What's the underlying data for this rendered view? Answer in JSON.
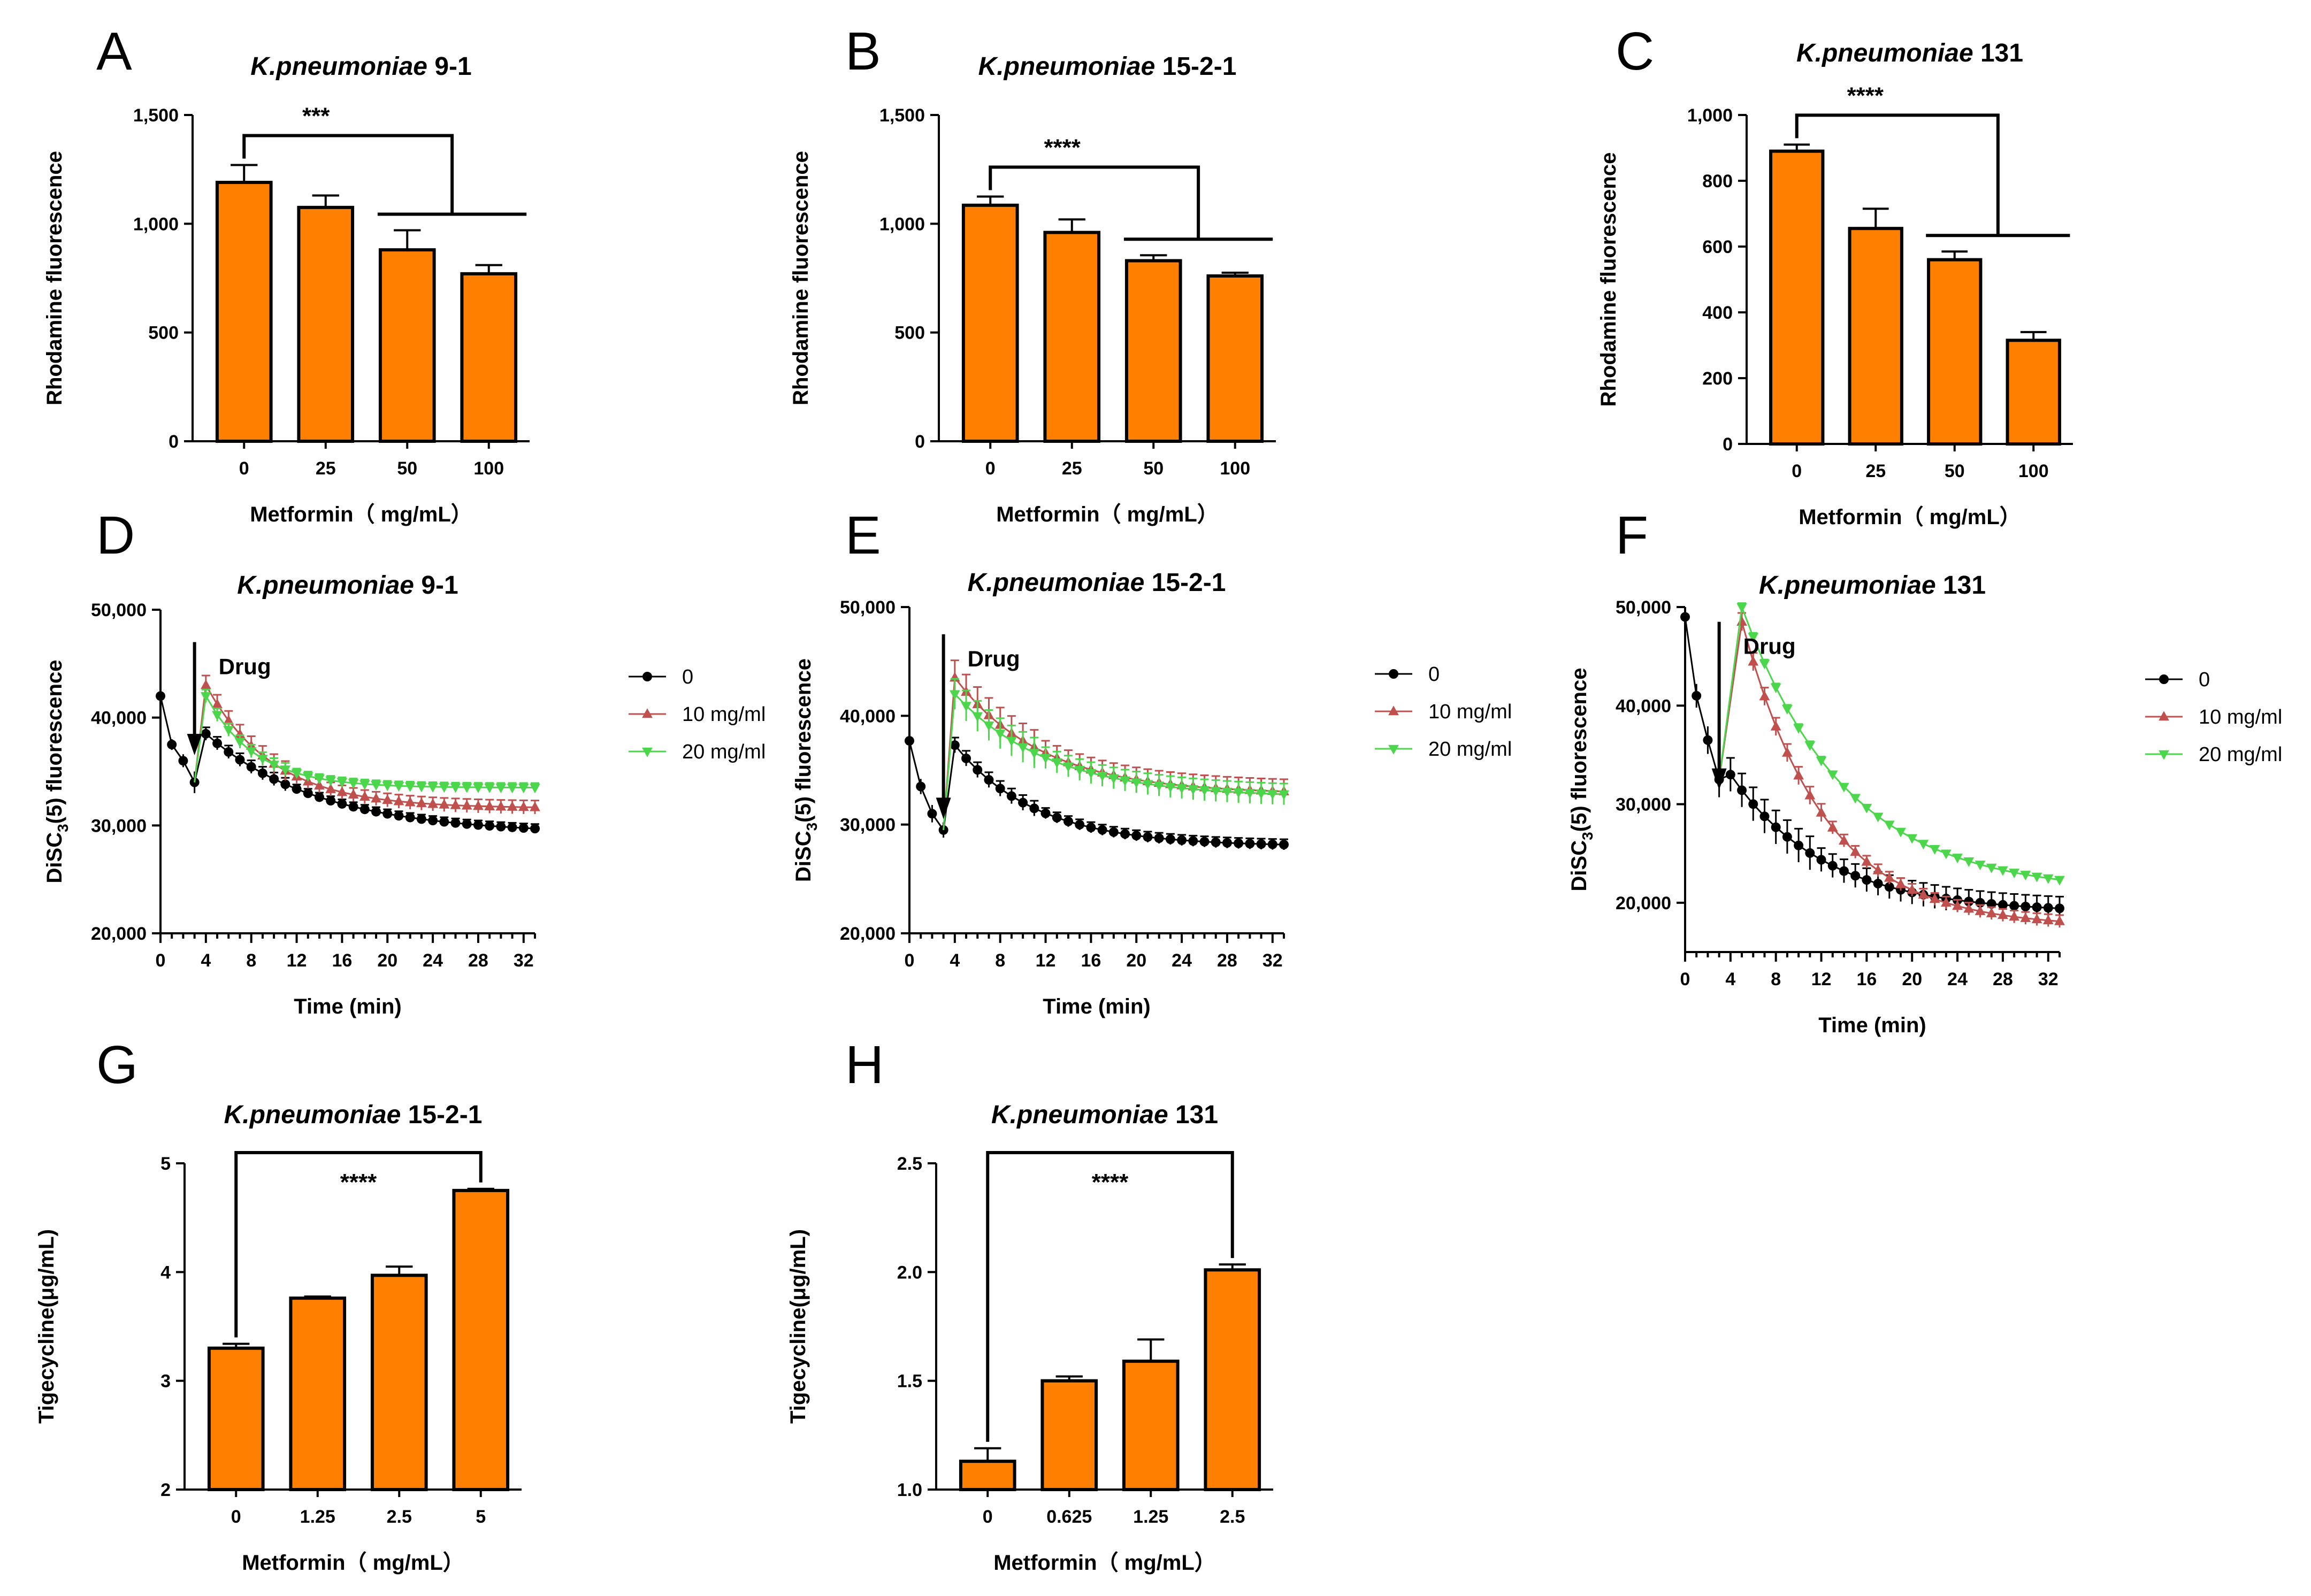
{
  "colors": {
    "bar": "#FF8000",
    "axis": "#000000",
    "series_0": "#000000",
    "series_10": "#C0504D",
    "series_20": "#4CD64C"
  },
  "chart_data": [
    {
      "id": "A",
      "type": "bar",
      "letter": "A",
      "title_italic": "K.pneumoniae",
      "title_rest": " 9-1",
      "xlabel": "Metformin（ mg/mL）",
      "ylabel": "Rhodamine fluorescence",
      "categories": [
        "0",
        "25",
        "50",
        "100"
      ],
      "values": [
        1190,
        1075,
        880,
        770
      ],
      "errors": [
        80,
        55,
        90,
        40
      ],
      "ylim": [
        0,
        1500
      ],
      "yticks": [
        0,
        500,
        1000,
        1500
      ],
      "yticklabels": [
        "0",
        "500",
        "1,000",
        "1,500"
      ],
      "sig": "***",
      "sig_type": "bracket_group"
    },
    {
      "id": "B",
      "type": "bar",
      "letter": "B",
      "title_italic": "K.pneumoniae",
      "title_rest": " 15-2-1",
      "xlabel": "Metformin（ mg/mL）",
      "ylabel": "Rhodamine fluorescence",
      "categories": [
        "0",
        "25",
        "50",
        "100"
      ],
      "values": [
        1085,
        960,
        830,
        760
      ],
      "errors": [
        40,
        60,
        25,
        15
      ],
      "ylim": [
        0,
        1500
      ],
      "yticks": [
        0,
        500,
        1000,
        1500
      ],
      "yticklabels": [
        "0",
        "500",
        "1,000",
        "1,500"
      ],
      "sig": "****",
      "sig_type": "bracket_group"
    },
    {
      "id": "C",
      "type": "bar",
      "letter": "C",
      "title_italic": "K.pneumoniae",
      "title_rest": " 131",
      "xlabel": "Metformin（ mg/mL）",
      "ylabel": "Rhodamine fluorescence",
      "categories": [
        "0",
        "25",
        "50",
        "100"
      ],
      "values": [
        890,
        655,
        560,
        315
      ],
      "errors": [
        20,
        60,
        25,
        25
      ],
      "ylim": [
        0,
        1000
      ],
      "yticks": [
        0,
        200,
        400,
        600,
        800,
        1000
      ],
      "yticklabels": [
        "0",
        "200",
        "400",
        "600",
        "800",
        "1,000"
      ],
      "sig": "****",
      "sig_type": "bracket_group"
    },
    {
      "id": "D",
      "type": "line",
      "letter": "D",
      "title_italic": "K.pneumoniae",
      "title_rest": " 9-1",
      "xlabel": "Time (min)",
      "ylabel_main": "DiSC",
      "ylabel_sub": "3",
      "ylabel_rest": "(5) fluorescence",
      "xlim": [
        0,
        33
      ],
      "xticks": [
        0,
        4,
        8,
        12,
        16,
        20,
        24,
        28,
        32
      ],
      "ylim": [
        20000,
        50000
      ],
      "yticks": [
        20000,
        30000,
        40000,
        50000
      ],
      "yticklabels": [
        "20,000",
        "30,000",
        "40,000",
        "50,000"
      ],
      "drug_label": "Drug",
      "drug_time": 3,
      "drug_arrow_top": 47000,
      "drug_arrow_bottom": 37000,
      "baseline": {
        "x": [
          0,
          1,
          2,
          3
        ],
        "y": [
          42000,
          37500,
          36000,
          34000
        ],
        "err": [
          600,
          500,
          600,
          1000
        ]
      },
      "series": [
        {
          "name": "0",
          "color": "#000000",
          "marker": "circle",
          "start": 38500,
          "end": 29200,
          "k": 0.1,
          "jump": 3000,
          "err": 600,
          "sp": 0
        },
        {
          "name": "10 mg/ml",
          "color": "#C0504D",
          "marker": "triangle-up",
          "start": 43000,
          "end": 31600,
          "k": 0.17,
          "jump": 3500,
          "err": 900,
          "sp": 0
        },
        {
          "name": "20 mg/ml",
          "color": "#4CD64C",
          "marker": "triangle-down",
          "start": 42000,
          "end": 33500,
          "k": 0.23,
          "jump": 0,
          "err": 600,
          "sp": 0
        }
      ],
      "legend": [
        "0",
        "10 mg/ml",
        "20 mg/ml"
      ]
    },
    {
      "id": "E",
      "type": "line",
      "letter": "E",
      "title_italic": "K.pneumoniae",
      "title_rest": " 15-2-1",
      "xlabel": "Time (min)",
      "ylabel_main": "DiSC",
      "ylabel_sub": "3",
      "ylabel_rest": "(5) fluorescence",
      "xlim": [
        0,
        33
      ],
      "xticks": [
        0,
        4,
        8,
        12,
        16,
        20,
        24,
        28,
        32
      ],
      "ylim": [
        20000,
        50000
      ],
      "yticks": [
        20000,
        30000,
        40000,
        50000
      ],
      "yticklabels": [
        "20,000",
        "30,000",
        "40,000",
        "50,000"
      ],
      "drug_label": "Drug",
      "drug_time": 3,
      "drug_arrow_top": 47500,
      "drug_arrow_bottom": 31000,
      "baseline": {
        "x": [
          0,
          1,
          2,
          3
        ],
        "y": [
          37700,
          33500,
          31000,
          29500
        ],
        "err": [
          800,
          700,
          800,
          700
        ]
      },
      "series": [
        {
          "name": "0",
          "color": "#000000",
          "marker": "circle",
          "start": 37300,
          "end": 28000,
          "k": 0.14,
          "jump": 0,
          "err": 700,
          "sp": 0
        },
        {
          "name": "10 mg/ml",
          "color": "#C0504D",
          "marker": "triangle-up",
          "start": 43500,
          "end": 32800,
          "k": 0.13,
          "jump": 0,
          "err": 1600,
          "sp": 0
        },
        {
          "name": "20 mg/ml",
          "color": "#4CD64C",
          "marker": "triangle-down",
          "start": 42000,
          "end": 32500,
          "k": 0.12,
          "jump": 0,
          "err": 1400,
          "sp": 0
        }
      ],
      "legend": [
        "0",
        "10 mg/ml",
        "20 mg/ml"
      ]
    },
    {
      "id": "F",
      "type": "line",
      "letter": "F",
      "title_italic": "K.pneumoniae",
      "title_rest": " 131",
      "xlabel": "Time (min)",
      "ylabel_main": "DiSC",
      "ylabel_sub": "3",
      "ylabel_rest": "(5) fluorescence",
      "xlim": [
        0,
        33
      ],
      "xticks": [
        0,
        4,
        8,
        12,
        16,
        20,
        24,
        28,
        32
      ],
      "ylim": [
        15000,
        50000
      ],
      "yticks": [
        20000,
        30000,
        40000,
        50000
      ],
      "yticklabels": [
        "20,000",
        "30,000",
        "40,000",
        "50,000"
      ],
      "drug_label": "Drug",
      "drug_time": 3,
      "drug_arrow_top": 48500,
      "drug_arrow_bottom": 32000,
      "baseline": {
        "x": [
          0,
          1,
          2,
          3
        ],
        "y": [
          49000,
          41000,
          36500,
          32500
        ],
        "err": [
          800,
          1200,
          1400,
          1800
        ]
      },
      "series": [
        {
          "name": "0",
          "color": "#000000",
          "marker": "circle",
          "start": 33000,
          "end": 19000,
          "k": 0.12,
          "jump": 0,
          "err": 1700,
          "sp": 0
        },
        {
          "name": "10 mg/ml",
          "color": "#C0504D",
          "marker": "triangle-up",
          "start": 48500,
          "end": 17500,
          "k": 0.14,
          "jump": 0,
          "err": 900,
          "sp": 1
        },
        {
          "name": "20 mg/ml",
          "color": "#4CD64C",
          "marker": "triangle-down",
          "start": 50000,
          "end": 21000,
          "k": 0.11,
          "jump": 0,
          "err": 400,
          "sp": 1
        }
      ],
      "legend": [
        "0",
        "10 mg/ml",
        "20 mg/ml"
      ]
    },
    {
      "id": "G",
      "type": "bar",
      "letter": "G",
      "title_italic": "K.pneumoniae",
      "title_rest": " 15-2-1",
      "xlabel": "Metformin（ mg/mL）",
      "ylabel": "Tigecycline(μg/mL)",
      "categories": [
        "0",
        "1.25",
        "2.5",
        "5"
      ],
      "values": [
        3.3,
        3.76,
        3.97,
        4.75
      ],
      "errors": [
        0.04,
        0.015,
        0.08,
        0.015
      ],
      "ylim": [
        2,
        5
      ],
      "yticks": [
        2,
        3,
        4,
        5
      ],
      "yticklabels": [
        "2",
        "3",
        "4",
        "5"
      ],
      "sig": "****",
      "sig_type": "bracket_pair"
    },
    {
      "id": "H",
      "type": "bar",
      "letter": "H",
      "title_italic": "K.pneumoniae",
      "title_rest": " 131",
      "xlabel": "Metformin（ mg/mL）",
      "ylabel": "Tigecycline(μg/mL)",
      "categories": [
        "0",
        "0.625",
        "1.25",
        "2.5"
      ],
      "values": [
        1.13,
        1.5,
        1.59,
        2.01
      ],
      "errors": [
        0.06,
        0.02,
        0.1,
        0.025
      ],
      "ylim": [
        1.0,
        2.5
      ],
      "yticks": [
        1.0,
        1.5,
        2.0,
        2.5
      ],
      "yticklabels": [
        "1.0",
        "1.5",
        "2.0",
        "2.5"
      ],
      "sig": "****",
      "sig_type": "bracket_pair"
    }
  ]
}
